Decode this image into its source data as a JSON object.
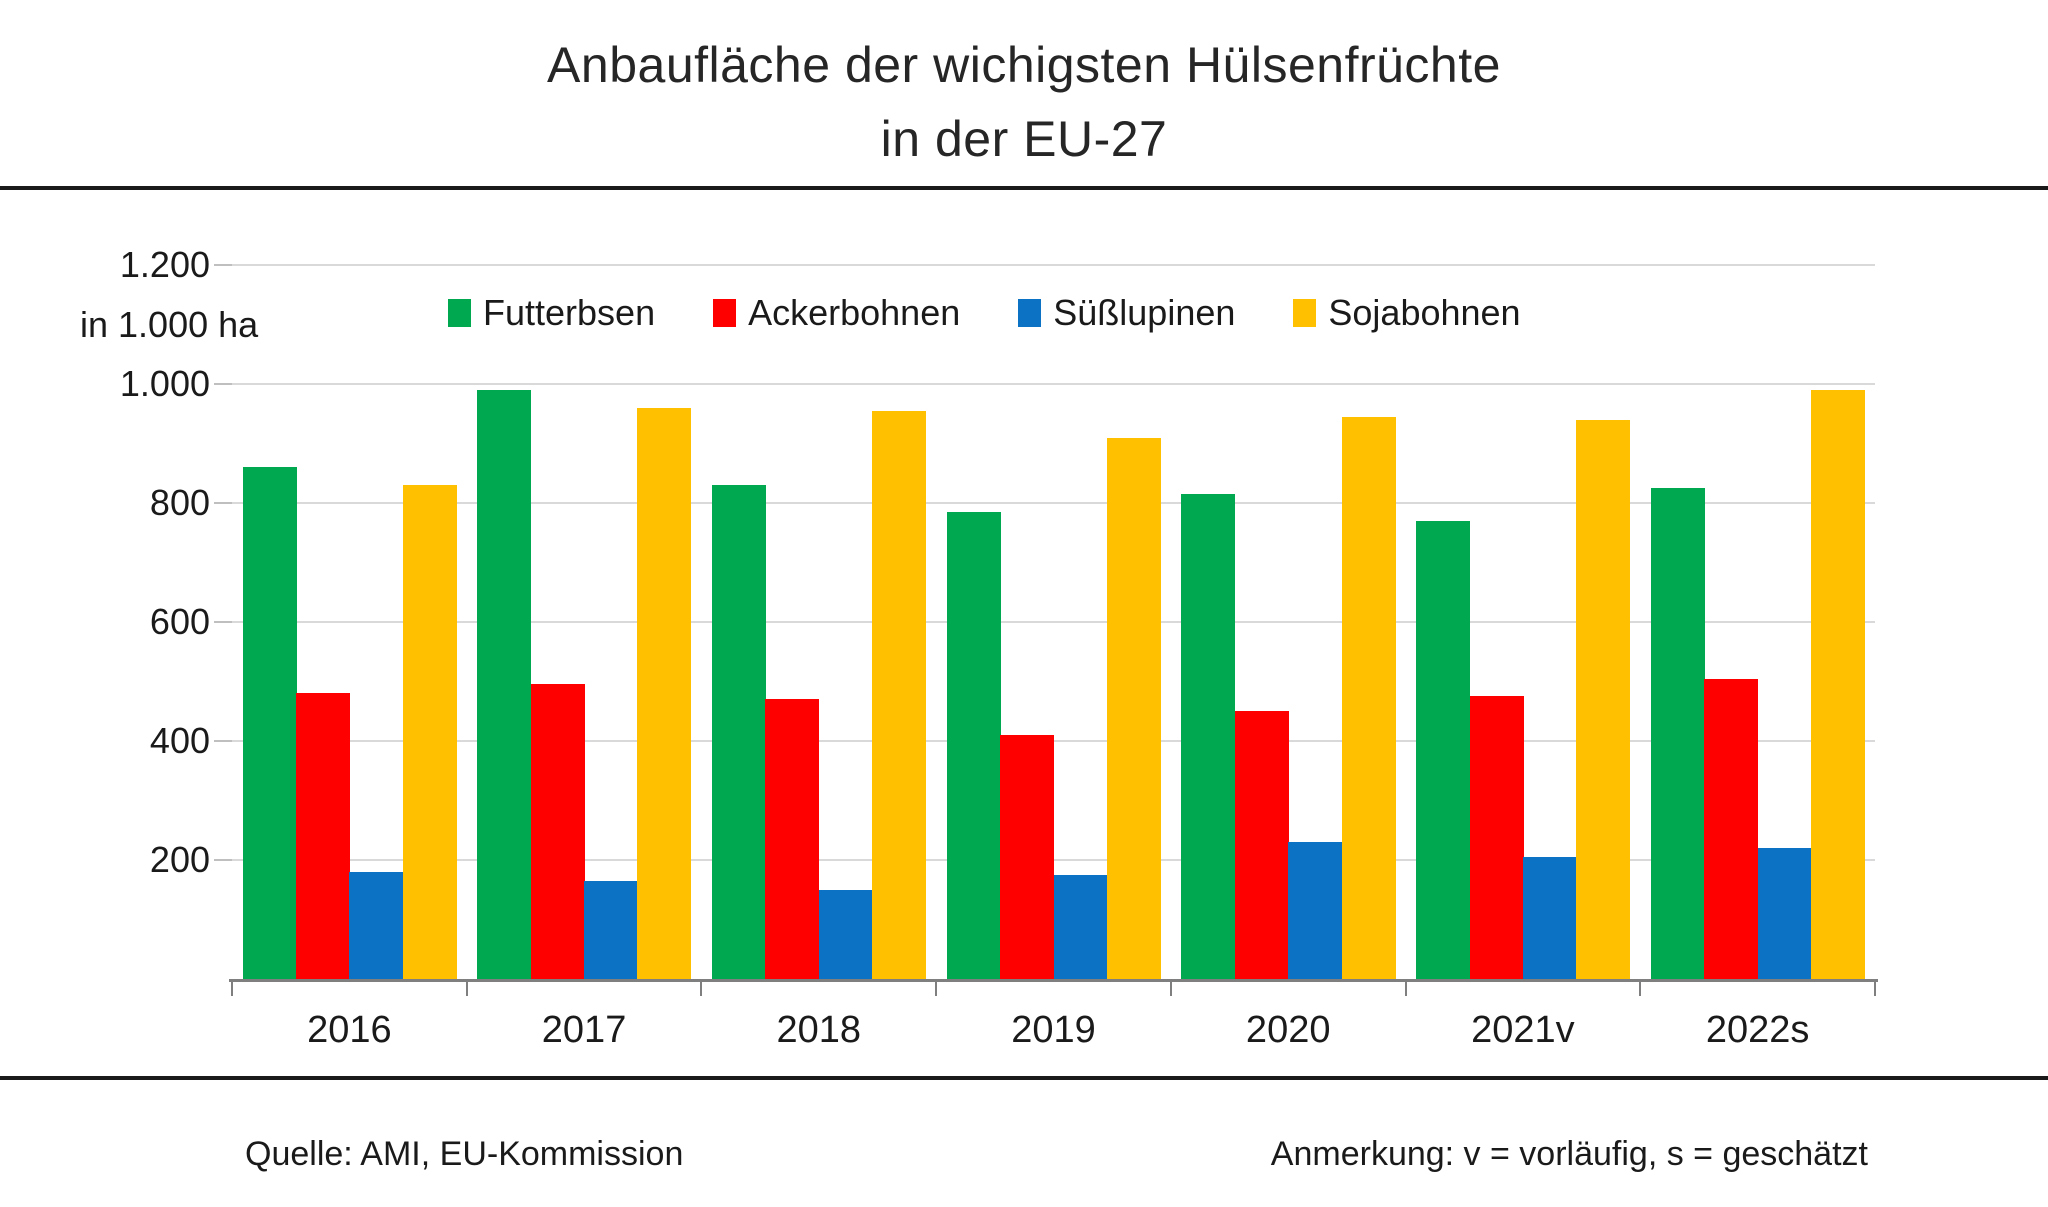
{
  "title": {
    "line1": "Anbaufläche der wichigsten Hülsenfrüchte",
    "line2": "in der EU-27"
  },
  "y_axis": {
    "unit_label": "in 1.000 ha",
    "tick_labels": [
      "1.200",
      "1.000",
      "800",
      "600",
      "400",
      "200"
    ],
    "tick_values": [
      1200,
      1000,
      800,
      600,
      400,
      200
    ]
  },
  "chart_data": {
    "type": "bar",
    "title": "Anbaufläche der wichigsten Hülsenfrüchte in der EU-27",
    "ylabel": "in 1.000 ha",
    "ylim": [
      0,
      1200
    ],
    "grid": true,
    "legend_position": "top-center",
    "categories": [
      "2016",
      "2017",
      "2018",
      "2019",
      "2020",
      "2021v",
      "2022s"
    ],
    "series": [
      {
        "name": "Futterbsen",
        "color": "#00A94F",
        "values": [
          860,
          990,
          830,
          785,
          815,
          770,
          825
        ]
      },
      {
        "name": "Ackerbohnen",
        "color": "#FE0000",
        "values": [
          480,
          495,
          470,
          410,
          450,
          475,
          505
        ]
      },
      {
        "name": "Süßlupinen",
        "color": "#0B72C4",
        "values": [
          180,
          165,
          150,
          175,
          230,
          205,
          220
        ]
      },
      {
        "name": "Sojabohnen",
        "color": "#FFC000",
        "values": [
          830,
          960,
          955,
          910,
          945,
          940,
          990
        ]
      }
    ]
  },
  "colors": {
    "gridline": "#d9d9d9",
    "axis": "#7f7f7f",
    "rule": "#1a1a1a"
  },
  "footer": {
    "source": "Quelle: AMI, EU-Kommission",
    "note": "Anmerkung: v = vorläufig, s = geschätzt"
  }
}
